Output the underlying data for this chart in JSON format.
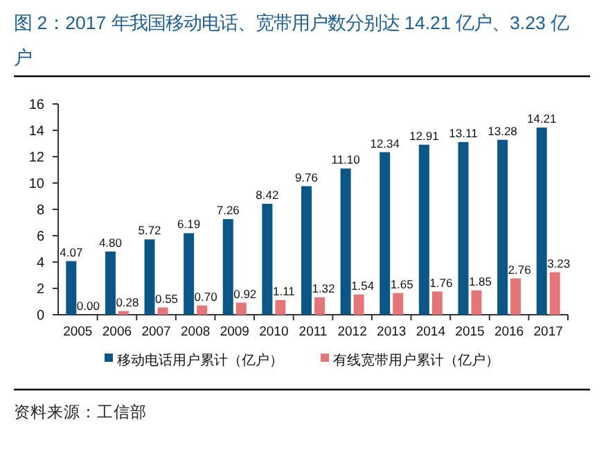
{
  "chart_data": {
    "type": "bar",
    "title": "图 2：2017 年我国移动电话、宽带用户数分别达 14.21 亿户、3.23 亿户",
    "categories": [
      "2005",
      "2006",
      "2007",
      "2008",
      "2009",
      "2010",
      "2011",
      "2012",
      "2013",
      "2014",
      "2015",
      "2016",
      "2017"
    ],
    "series": [
      {
        "name": "移动电话用户累计（亿户）",
        "color": "#0b5685",
        "values": [
          4.07,
          4.8,
          5.72,
          6.19,
          7.26,
          8.42,
          9.76,
          11.1,
          12.34,
          12.91,
          13.11,
          13.28,
          14.21
        ],
        "value_labels": [
          "4.07",
          "4.80",
          "5.72",
          "6.19",
          "7.26",
          "8.42",
          "9.76",
          "11.10",
          "12.34",
          "12.91",
          "13.11",
          "13.28",
          "14.21"
        ]
      },
      {
        "name": "有线宽带用户累计（亿户）",
        "color": "#e47677",
        "values": [
          0,
          0.28,
          0.55,
          0.7,
          0.92,
          1.11,
          1.32,
          1.54,
          1.65,
          1.76,
          1.85,
          2.76,
          3.23
        ],
        "value_labels": [
          "0.00",
          "0.28",
          "0.55",
          "0.70",
          "0.92",
          "1.11",
          "1.32",
          "1.54",
          "1.65",
          "1.76",
          "1.85",
          "2.76",
          "3.23"
        ]
      }
    ],
    "ylim": [
      0,
      16
    ],
    "yticks": [
      0,
      2,
      4,
      6,
      8,
      10,
      12,
      14,
      16
    ],
    "legend": "bottom",
    "annotations": [
      "资料来源：工信部"
    ]
  }
}
